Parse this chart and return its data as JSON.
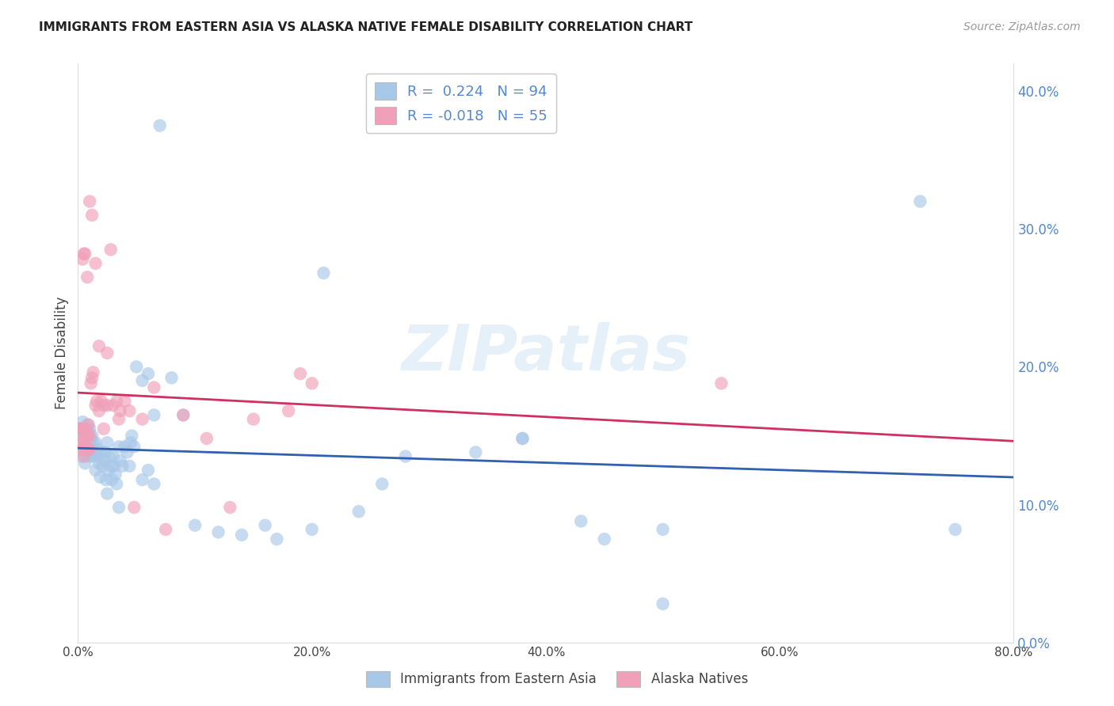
{
  "title": "IMMIGRANTS FROM EASTERN ASIA VS ALASKA NATIVE FEMALE DISABILITY CORRELATION CHART",
  "source": "Source: ZipAtlas.com",
  "ylabel": "Female Disability",
  "watermark": "ZIPatlas",
  "legend_label1": "Immigrants from Eastern Asia",
  "legend_label2": "Alaska Natives",
  "r1": 0.224,
  "n1": 94,
  "r2": -0.018,
  "n2": 55,
  "color1": "#a8c8e8",
  "color2": "#f0a0b8",
  "line_color1": "#3060b0",
  "line_color2": "#d03060",
  "tick_color": "#5588cc",
  "xlim": [
    0.0,
    0.8
  ],
  "ylim": [
    0.0,
    0.42
  ],
  "xticks": [
    0.0,
    0.2,
    0.4,
    0.6,
    0.8
  ],
  "yticks": [
    0.0,
    0.1,
    0.2,
    0.3,
    0.4
  ],
  "blue_x": [
    0.001,
    0.001,
    0.002,
    0.002,
    0.003,
    0.003,
    0.003,
    0.004,
    0.004,
    0.004,
    0.005,
    0.005,
    0.005,
    0.006,
    0.006,
    0.006,
    0.007,
    0.007,
    0.007,
    0.008,
    0.008,
    0.008,
    0.009,
    0.009,
    0.01,
    0.01,
    0.01,
    0.011,
    0.011,
    0.012,
    0.012,
    0.013,
    0.013,
    0.014,
    0.015,
    0.015,
    0.016,
    0.017,
    0.018,
    0.019,
    0.02,
    0.021,
    0.022,
    0.023,
    0.024,
    0.025,
    0.026,
    0.027,
    0.028,
    0.029,
    0.03,
    0.031,
    0.032,
    0.033,
    0.035,
    0.036,
    0.038,
    0.04,
    0.042,
    0.044,
    0.046,
    0.048,
    0.05,
    0.055,
    0.06,
    0.065,
    0.07,
    0.08,
    0.09,
    0.1,
    0.12,
    0.14,
    0.16,
    0.2,
    0.24,
    0.28,
    0.34,
    0.38,
    0.43,
    0.5,
    0.38,
    0.26,
    0.21,
    0.5,
    0.06,
    0.065,
    0.055,
    0.035,
    0.025,
    0.045,
    0.75,
    0.72,
    0.45,
    0.17
  ],
  "blue_y": [
    0.155,
    0.145,
    0.15,
    0.14,
    0.155,
    0.145,
    0.135,
    0.16,
    0.15,
    0.14,
    0.155,
    0.148,
    0.138,
    0.152,
    0.14,
    0.13,
    0.155,
    0.145,
    0.135,
    0.158,
    0.148,
    0.138,
    0.152,
    0.142,
    0.155,
    0.145,
    0.135,
    0.148,
    0.138,
    0.15,
    0.14,
    0.145,
    0.135,
    0.138,
    0.145,
    0.125,
    0.135,
    0.14,
    0.13,
    0.12,
    0.138,
    0.128,
    0.132,
    0.138,
    0.118,
    0.145,
    0.125,
    0.135,
    0.128,
    0.118,
    0.135,
    0.128,
    0.122,
    0.115,
    0.142,
    0.132,
    0.128,
    0.142,
    0.138,
    0.128,
    0.15,
    0.142,
    0.2,
    0.19,
    0.195,
    0.165,
    0.375,
    0.192,
    0.165,
    0.085,
    0.08,
    0.078,
    0.085,
    0.082,
    0.095,
    0.135,
    0.138,
    0.148,
    0.088,
    0.028,
    0.148,
    0.115,
    0.268,
    0.082,
    0.125,
    0.115,
    0.118,
    0.098,
    0.108,
    0.145,
    0.082,
    0.32,
    0.075,
    0.075
  ],
  "pink_x": [
    0.001,
    0.002,
    0.002,
    0.003,
    0.004,
    0.004,
    0.005,
    0.005,
    0.006,
    0.006,
    0.007,
    0.007,
    0.008,
    0.008,
    0.009,
    0.01,
    0.01,
    0.011,
    0.012,
    0.013,
    0.015,
    0.016,
    0.018,
    0.02,
    0.022,
    0.025,
    0.028,
    0.03,
    0.033,
    0.036,
    0.04,
    0.044,
    0.048,
    0.055,
    0.065,
    0.075,
    0.09,
    0.11,
    0.13,
    0.15,
    0.18,
    0.2,
    0.015,
    0.012,
    0.008,
    0.006,
    0.004,
    0.01,
    0.018,
    0.025,
    0.035,
    0.005,
    0.022,
    0.55,
    0.19
  ],
  "pink_y": [
    0.155,
    0.145,
    0.155,
    0.14,
    0.155,
    0.145,
    0.135,
    0.155,
    0.145,
    0.155,
    0.15,
    0.14,
    0.15,
    0.14,
    0.158,
    0.15,
    0.14,
    0.188,
    0.192,
    0.196,
    0.172,
    0.175,
    0.168,
    0.175,
    0.172,
    0.172,
    0.285,
    0.172,
    0.175,
    0.168,
    0.175,
    0.168,
    0.098,
    0.162,
    0.185,
    0.082,
    0.165,
    0.148,
    0.098,
    0.162,
    0.168,
    0.188,
    0.275,
    0.31,
    0.265,
    0.282,
    0.278,
    0.32,
    0.215,
    0.21,
    0.162,
    0.282,
    0.155,
    0.188,
    0.195
  ]
}
